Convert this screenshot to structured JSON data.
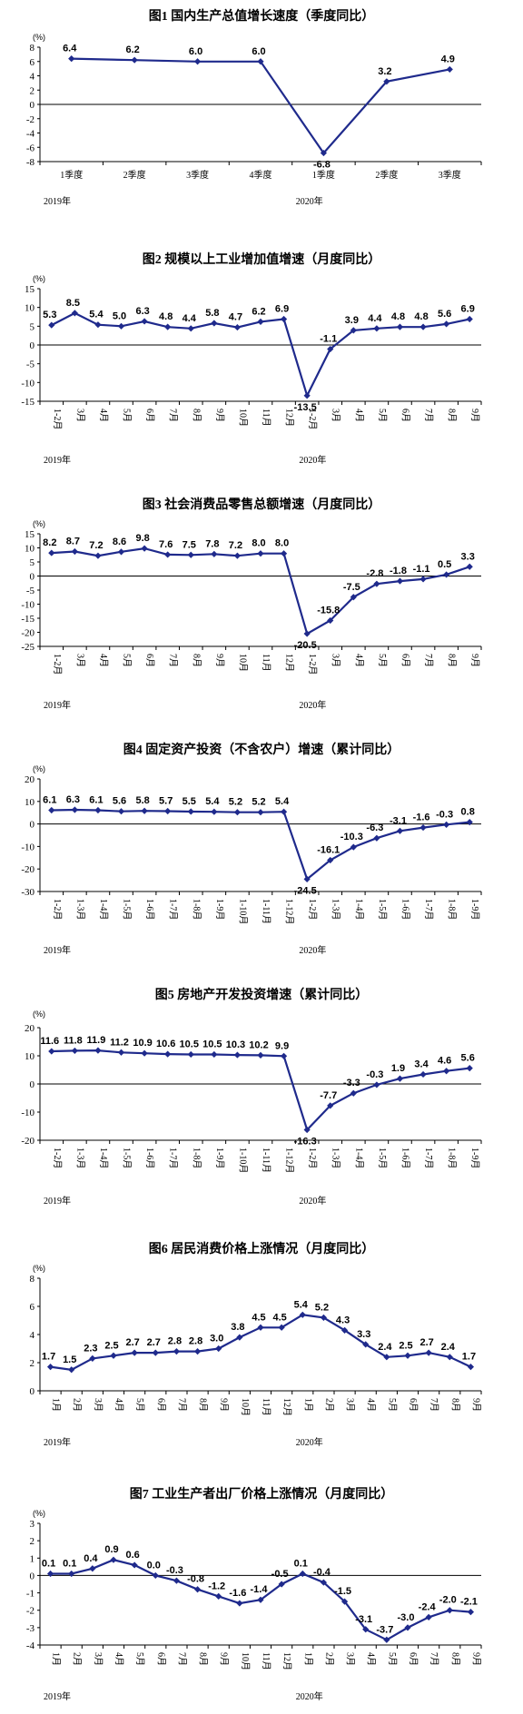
{
  "chart_data": [
    {
      "type": "line",
      "title": "图1   国内生产总值增长速度（季度同比）",
      "unit": "(%)",
      "ylim": [
        -8,
        8
      ],
      "yticks": [
        -8,
        -6,
        -4,
        -2,
        0,
        2,
        4,
        6,
        8
      ],
      "categories": [
        "1季度",
        "2季度",
        "3季度",
        "4季度",
        "1季度",
        "2季度",
        "3季度"
      ],
      "values": [
        6.4,
        6.2,
        6.0,
        6.0,
        -6.8,
        3.2,
        4.9
      ],
      "year_labels": [
        {
          "text": "2019年",
          "index": 0
        },
        {
          "text": "2020年",
          "index": 4
        }
      ],
      "color": "#1f2a8c"
    },
    {
      "type": "line",
      "title": "图2   规模以上工业增加值增速（月度同比）",
      "unit": "(%)",
      "ylim": [
        -15,
        15
      ],
      "yticks": [
        -15,
        -10,
        -5,
        0,
        5,
        10,
        15
      ],
      "categories": [
        "1-2月",
        "3月",
        "4月",
        "5月",
        "6月",
        "7月",
        "8月",
        "9月",
        "10月",
        "11月",
        "12月",
        "1-2月",
        "3月",
        "4月",
        "5月",
        "6月",
        "7月",
        "8月",
        "9月"
      ],
      "values": [
        5.3,
        8.5,
        5.4,
        5.0,
        6.3,
        4.8,
        4.4,
        5.8,
        4.7,
        6.2,
        6.9,
        -13.5,
        -1.1,
        3.9,
        4.4,
        4.8,
        4.8,
        5.6,
        6.9
      ],
      "year_labels": [
        {
          "text": "2019年",
          "index": 0
        },
        {
          "text": "2020年",
          "index": 11
        }
      ],
      "color": "#1f2a8c"
    },
    {
      "type": "line",
      "title": "图3   社会消费品零售总额增速（月度同比）",
      "unit": "(%)",
      "ylim": [
        -25,
        15
      ],
      "yticks": [
        -25,
        -20,
        -15,
        -10,
        -5,
        0,
        5,
        10,
        15
      ],
      "categories": [
        "1-2月",
        "3月",
        "4月",
        "5月",
        "6月",
        "7月",
        "8月",
        "9月",
        "10月",
        "11月",
        "12月",
        "1-2月",
        "3月",
        "4月",
        "5月",
        "6月",
        "7月",
        "8月",
        "9月"
      ],
      "values": [
        8.2,
        8.7,
        7.2,
        8.6,
        9.8,
        7.6,
        7.5,
        7.8,
        7.2,
        8.0,
        8.0,
        -20.5,
        -15.8,
        -7.5,
        -2.8,
        -1.8,
        -1.1,
        0.5,
        3.3
      ],
      "year_labels": [
        {
          "text": "2019年",
          "index": 0
        },
        {
          "text": "2020年",
          "index": 11
        }
      ],
      "color": "#1f2a8c"
    },
    {
      "type": "line",
      "title": "图4   固定资产投资（不含农户）增速（累计同比）",
      "unit": "(%)",
      "ylim": [
        -30,
        20
      ],
      "yticks": [
        -30,
        -20,
        -10,
        0,
        10,
        20
      ],
      "categories": [
        "1-2月",
        "1-3月",
        "1-4月",
        "1-5月",
        "1-6月",
        "1-7月",
        "1-8月",
        "1-9月",
        "1-10月",
        "1-11月",
        "1-12月",
        "1-2月",
        "1-3月",
        "1-4月",
        "1-5月",
        "1-6月",
        "1-7月",
        "1-8月",
        "1-9月"
      ],
      "values": [
        6.1,
        6.3,
        6.1,
        5.6,
        5.8,
        5.7,
        5.5,
        5.4,
        5.2,
        5.2,
        5.4,
        -24.5,
        -16.1,
        -10.3,
        -6.3,
        -3.1,
        -1.6,
        -0.3,
        0.8
      ],
      "year_labels": [
        {
          "text": "2019年",
          "index": 0
        },
        {
          "text": "2020年",
          "index": 11
        }
      ],
      "color": "#1f2a8c"
    },
    {
      "type": "line",
      "title": "图5   房地产开发投资增速（累计同比）",
      "unit": "(%)",
      "ylim": [
        -20,
        20
      ],
      "yticks": [
        -20,
        -10,
        0,
        10,
        20
      ],
      "categories": [
        "1-2月",
        "1-3月",
        "1-4月",
        "1-5月",
        "1-6月",
        "1-7月",
        "1-8月",
        "1-9月",
        "1-10月",
        "1-11月",
        "1-12月",
        "1-2月",
        "1-3月",
        "1-4月",
        "1-5月",
        "1-6月",
        "1-7月",
        "1-8月",
        "1-9月"
      ],
      "values": [
        11.6,
        11.8,
        11.9,
        11.2,
        10.9,
        10.6,
        10.5,
        10.5,
        10.3,
        10.2,
        9.9,
        -16.3,
        -7.7,
        -3.3,
        -0.3,
        1.9,
        3.4,
        4.6,
        5.6
      ],
      "year_labels": [
        {
          "text": "2019年",
          "index": 0
        },
        {
          "text": "2020年",
          "index": 11
        }
      ],
      "color": "#1f2a8c"
    },
    {
      "type": "line",
      "title": "图6   居民消费价格上涨情况（月度同比）",
      "unit": "(%)",
      "ylim": [
        0,
        8
      ],
      "yticks": [
        0,
        2,
        4,
        6,
        8
      ],
      "categories": [
        "1月",
        "2月",
        "3月",
        "4月",
        "5月",
        "6月",
        "7月",
        "8月",
        "9月",
        "10月",
        "11月",
        "12月",
        "1月",
        "2月",
        "3月",
        "4月",
        "5月",
        "6月",
        "7月",
        "8月",
        "9月"
      ],
      "values": [
        1.7,
        1.5,
        2.3,
        2.5,
        2.7,
        2.7,
        2.8,
        2.8,
        3.0,
        3.8,
        4.5,
        4.5,
        5.4,
        5.2,
        4.3,
        3.3,
        2.4,
        2.5,
        2.7,
        2.4,
        1.7
      ],
      "year_labels": [
        {
          "text": "2019年",
          "index": 0
        },
        {
          "text": "2020年",
          "index": 12
        }
      ],
      "color": "#1f2a8c"
    },
    {
      "type": "line",
      "title": "图7   工业生产者出厂价格上涨情况（月度同比）",
      "unit": "(%)",
      "ylim": [
        -4,
        3
      ],
      "yticks": [
        -4,
        -3,
        -2,
        -1,
        0,
        1,
        2,
        3
      ],
      "categories": [
        "1月",
        "2月",
        "3月",
        "4月",
        "5月",
        "6月",
        "7月",
        "8月",
        "9月",
        "10月",
        "11月",
        "12月",
        "1月",
        "2月",
        "3月",
        "4月",
        "5月",
        "6月",
        "7月",
        "8月",
        "9月"
      ],
      "values": [
        0.1,
        0.1,
        0.4,
        0.9,
        0.6,
        0.0,
        -0.3,
        -0.8,
        -1.2,
        -1.6,
        -1.4,
        -0.5,
        0.1,
        -0.4,
        -1.5,
        -3.1,
        -3.7,
        -3.0,
        -2.4,
        -2.0,
        -2.1
      ],
      "year_labels": [
        {
          "text": "2019年",
          "index": 0
        },
        {
          "text": "2020年",
          "index": 12
        }
      ],
      "color": "#1f2a8c"
    }
  ]
}
